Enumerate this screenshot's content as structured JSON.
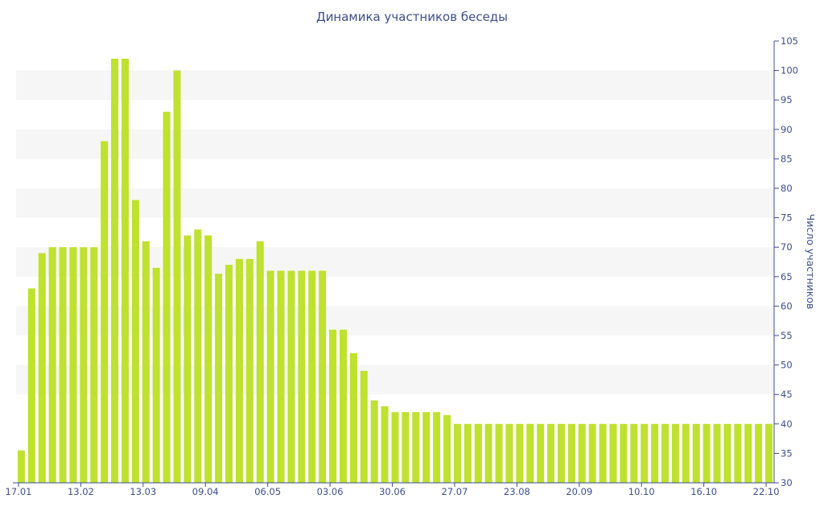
{
  "chart_data": {
    "type": "bar",
    "title": "Динамика участников беседы",
    "xlabel": "",
    "ylabel": "Число участников",
    "ylim": [
      30,
      105
    ],
    "yticks": [
      30,
      35,
      40,
      45,
      50,
      55,
      60,
      65,
      70,
      75,
      80,
      85,
      90,
      95,
      100,
      105
    ],
    "y_axis_side": "right",
    "bar_color": "#bfe12f",
    "axis_text_color": "#3d4f8a",
    "band_color": "#f6f6f6",
    "x_tick_labels": [
      {
        "label": "17.01",
        "index": 0
      },
      {
        "label": "13.02",
        "index": 6
      },
      {
        "label": "13.03",
        "index": 12
      },
      {
        "label": "09.04",
        "index": 18
      },
      {
        "label": "06.05",
        "index": 24
      },
      {
        "label": "03.06",
        "index": 30
      },
      {
        "label": "30.06",
        "index": 36
      },
      {
        "label": "27.07",
        "index": 42
      },
      {
        "label": "23.08",
        "index": 48
      },
      {
        "label": "20.09",
        "index": 54
      },
      {
        "label": "10.10",
        "index": 60
      },
      {
        "label": "16.10",
        "index": 66
      },
      {
        "label": "22.10",
        "index": 72
      }
    ],
    "series": [
      {
        "values": [
          35.5,
          63,
          69,
          70,
          70,
          70,
          70,
          70,
          88,
          102,
          102,
          78,
          71,
          66.5,
          93,
          100,
          72,
          73,
          72,
          65.5,
          67,
          68,
          68,
          71,
          66,
          66,
          66,
          66,
          66,
          66,
          56,
          56,
          52,
          49,
          44,
          43,
          42,
          42,
          42,
          42,
          42,
          41.5,
          40,
          40,
          40,
          40,
          40,
          40,
          40,
          40,
          40,
          40,
          40,
          40,
          40,
          40,
          40,
          40,
          40,
          40,
          40,
          40,
          40,
          40,
          40,
          40,
          40,
          40,
          40,
          40,
          40,
          40,
          40
        ]
      }
    ]
  }
}
